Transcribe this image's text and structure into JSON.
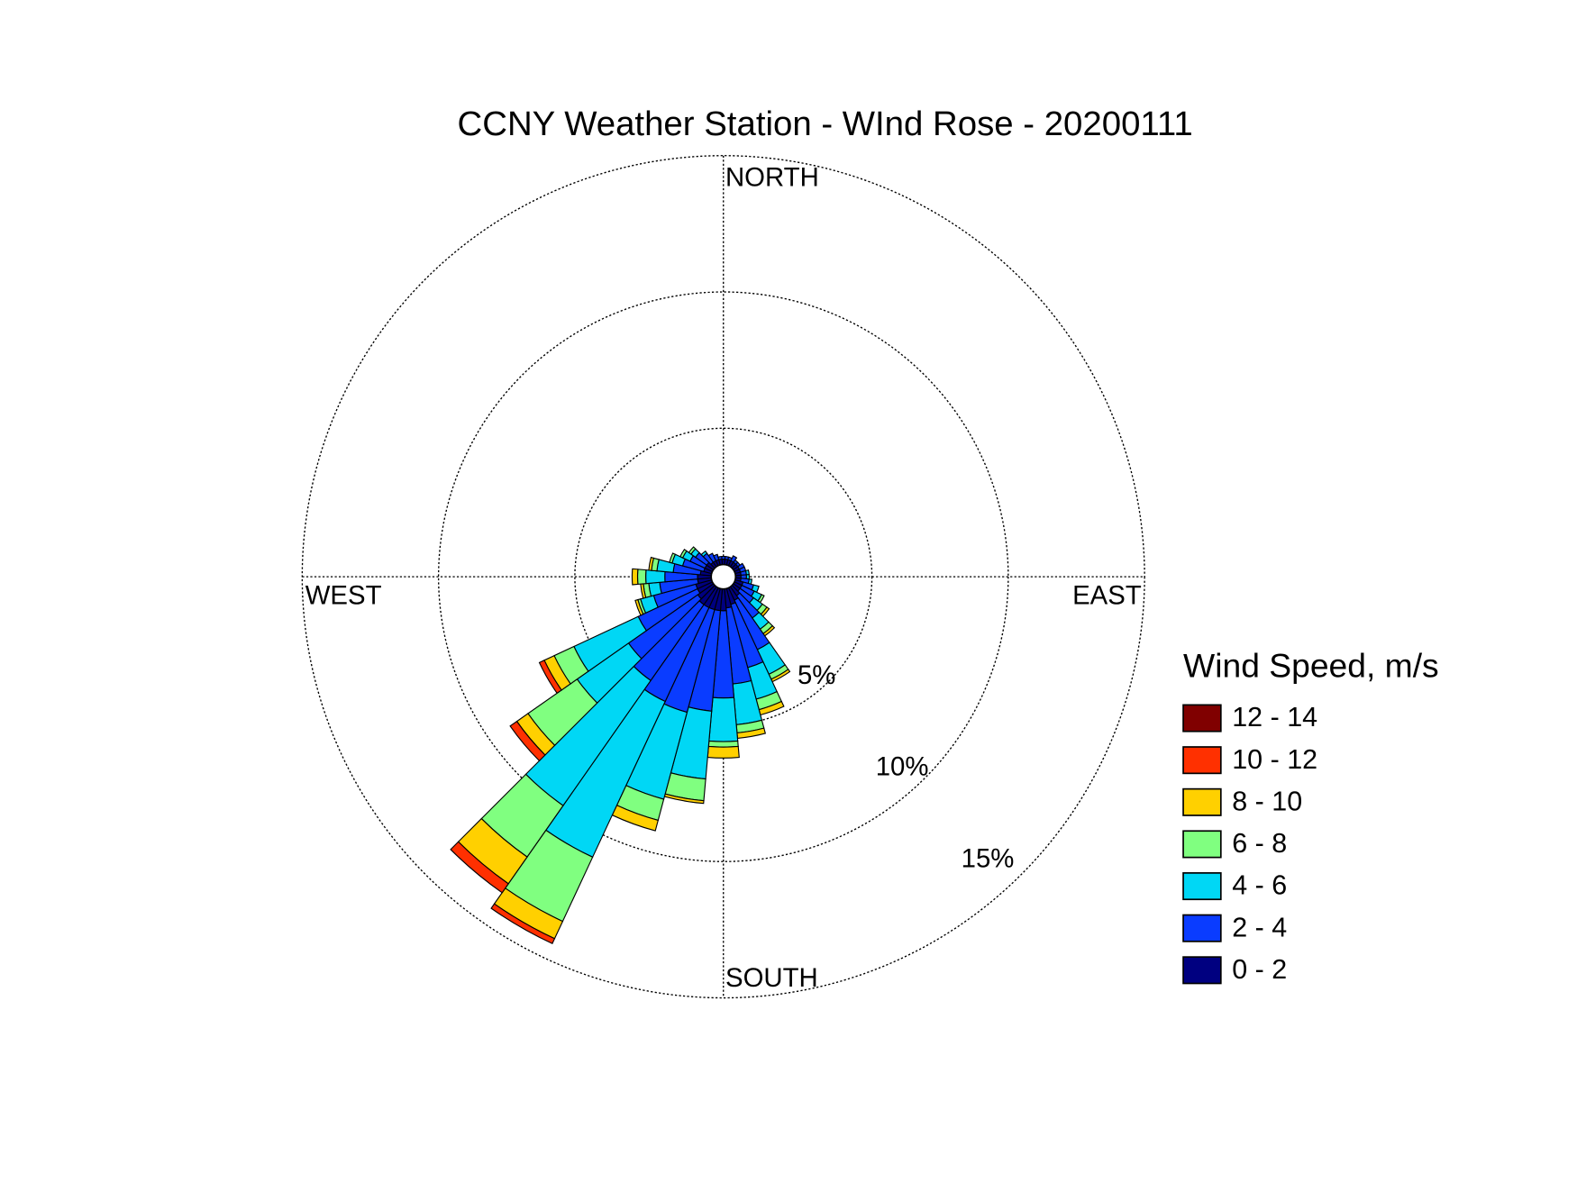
{
  "chart_data": {
    "type": "windrose",
    "title": "CCNY Weather Station - WInd Rose - 20200111",
    "direction_labels": {
      "north": "NORTH",
      "east": "EAST",
      "south": "SOUTH",
      "west": "WEST"
    },
    "legend_title": "Wind Speed, m/s",
    "x": [
      0,
      10,
      20,
      30,
      40,
      50,
      60,
      70,
      80,
      90,
      100,
      110,
      120,
      130,
      140,
      150,
      160,
      170,
      180,
      190,
      200,
      210,
      220,
      230,
      240,
      250,
      260,
      270,
      280,
      290,
      300,
      310,
      320,
      330,
      340,
      350
    ],
    "rlim": [
      0,
      15
    ],
    "rticks": [
      {
        "value": 5,
        "label": "5%"
      },
      {
        "value": 10,
        "label": "10%"
      },
      {
        "value": 15,
        "label": "15%"
      }
    ],
    "series": [
      {
        "name": "0 - 2",
        "color": "#000080",
        "values": [
          0.2,
          0.2,
          0.2,
          0.2,
          0.2,
          0.2,
          0.2,
          0.2,
          0.2,
          0.2,
          0.2,
          0.3,
          0.3,
          0.3,
          0.4,
          0.5,
          0.6,
          0.7,
          0.8,
          0.8,
          0.8,
          0.8,
          0.8,
          0.7,
          0.6,
          0.6,
          0.5,
          0.5,
          0.4,
          0.3,
          0.3,
          0.3,
          0.2,
          0.2,
          0.2,
          0.2
        ]
      },
      {
        "name": "2 - 4",
        "color": "#0a3cff",
        "values": [
          0.1,
          0.1,
          0.1,
          0.2,
          0.1,
          0.1,
          0.2,
          0.2,
          0.2,
          0.2,
          0.3,
          0.4,
          0.5,
          0.6,
          1.0,
          2.0,
          2.4,
          2.8,
          3.2,
          3.7,
          3.9,
          3.8,
          3.4,
          3.1,
          2.4,
          1.6,
          1.4,
          1.2,
          1.0,
          0.8,
          0.6,
          0.5,
          0.4,
          0.3,
          0.2,
          0.1
        ]
      },
      {
        "name": "4 - 6",
        "color": "#00d7f5",
        "values": [
          0,
          0,
          0,
          0,
          0,
          0,
          0,
          0,
          0.1,
          0.1,
          0.1,
          0.2,
          0.3,
          0.4,
          0.5,
          1.0,
          1.2,
          1.5,
          1.6,
          2.5,
          3.3,
          6.3,
          5.6,
          2.3,
          2.6,
          0.5,
          0.4,
          0.7,
          0.6,
          0.4,
          0.3,
          0.2,
          0.1,
          0,
          0,
          0
        ]
      },
      {
        "name": "6 - 8",
        "color": "#80ff80",
        "values": [
          0,
          0,
          0,
          0,
          0,
          0,
          0,
          0,
          0,
          0,
          0,
          0,
          0.1,
          0.2,
          0.2,
          0.2,
          0.4,
          0.3,
          0.2,
          0.8,
          0.8,
          2.6,
          2.3,
          2.2,
          0.8,
          0.1,
          0.2,
          0.3,
          0.2,
          0.1,
          0.1,
          0.1,
          0,
          0,
          0,
          0
        ]
      },
      {
        "name": "8 - 10",
        "color": "#ffd000",
        "values": [
          0,
          0,
          0,
          0,
          0,
          0,
          0,
          0,
          0,
          0,
          0,
          0,
          0,
          0.1,
          0.1,
          0.1,
          0.2,
          0.2,
          0.4,
          0.1,
          0.4,
          0.7,
          1.2,
          0.5,
          0.4,
          0.1,
          0.1,
          0.2,
          0.1,
          0,
          0,
          0,
          0,
          0,
          0,
          0
        ]
      },
      {
        "name": "10 - 12",
        "color": "#ff3000",
        "values": [
          0,
          0,
          0,
          0,
          0,
          0,
          0,
          0,
          0,
          0,
          0,
          0,
          0,
          0,
          0,
          0,
          0,
          0,
          0,
          0,
          0,
          0.2,
          0.4,
          0.3,
          0.2,
          0,
          0,
          0,
          0,
          0,
          0,
          0,
          0,
          0,
          0,
          0
        ]
      },
      {
        "name": "12 - 14",
        "color": "#800000",
        "values": [
          0,
          0,
          0,
          0,
          0,
          0,
          0,
          0,
          0,
          0,
          0,
          0,
          0,
          0,
          0,
          0,
          0,
          0,
          0,
          0,
          0,
          0,
          0,
          0,
          0,
          0,
          0,
          0,
          0,
          0,
          0,
          0,
          0,
          0,
          0,
          0
        ]
      }
    ]
  }
}
